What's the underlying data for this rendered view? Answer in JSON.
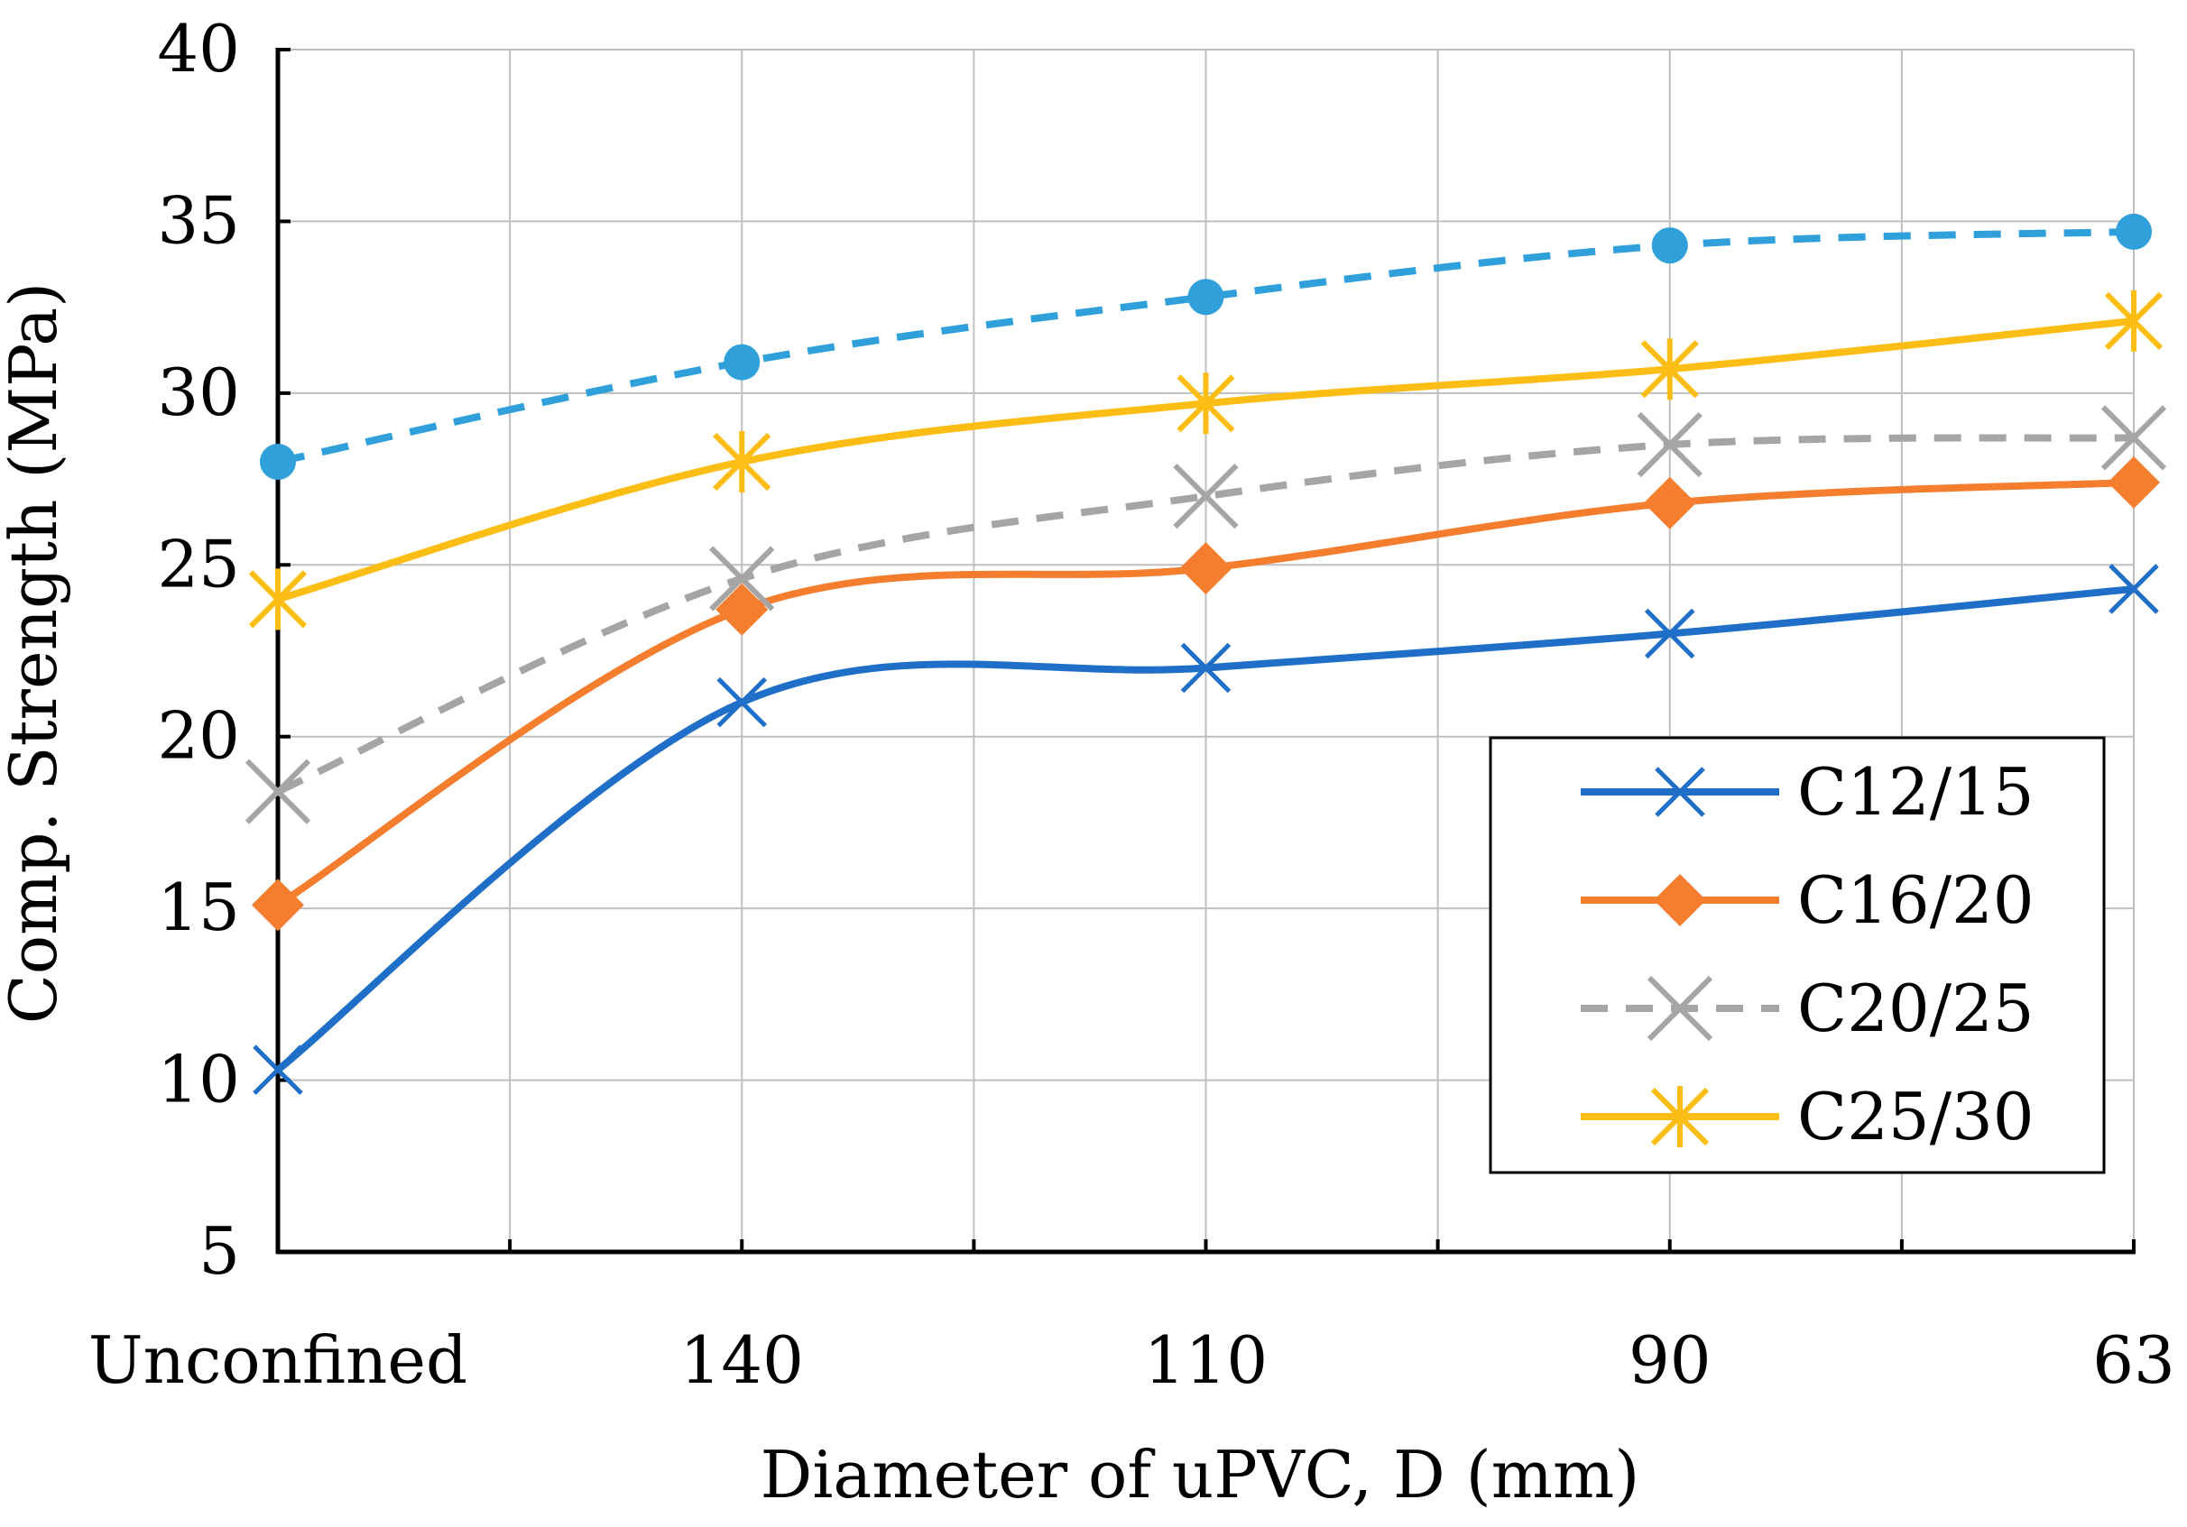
{
  "chart_data": {
    "type": "line",
    "title": "",
    "xlabel": "Diameter of uPVC, D (mm)",
    "ylabel": "Comp. Strength (MPa)",
    "categories": [
      "Unconfined",
      "140",
      "110",
      "90",
      "63"
    ],
    "ylim": [
      5,
      40
    ],
    "yticks": [
      5,
      10,
      15,
      20,
      25,
      30,
      35,
      40
    ],
    "grid": true,
    "legend_position": "bottom-right",
    "series": [
      {
        "name": "C12/15",
        "values": [
          10.3,
          21.0,
          22.0,
          23.0,
          24.3
        ],
        "color": "#1f6fc8",
        "marker": "x",
        "dashed": false,
        "in_legend": true
      },
      {
        "name": "C16/20",
        "values": [
          15.1,
          23.7,
          24.9,
          26.8,
          27.4
        ],
        "color": "#f47d2e",
        "marker": "diamond",
        "dashed": false,
        "in_legend": true
      },
      {
        "name": "C20/25",
        "values": [
          18.4,
          24.6,
          27.0,
          28.5,
          28.7
        ],
        "color": "#a5a5a5",
        "marker": "x-large",
        "dashed": true,
        "in_legend": true
      },
      {
        "name": "C25/30",
        "values": [
          24.0,
          28.0,
          29.7,
          30.7,
          32.1
        ],
        "color": "#fcbd14",
        "marker": "asterisk",
        "dashed": false,
        "in_legend": true
      },
      {
        "name": "",
        "values": [
          28.0,
          30.9,
          32.8,
          34.3,
          34.7
        ],
        "color": "#2fa0da",
        "marker": "circle",
        "dashed": true,
        "in_legend": false
      }
    ]
  }
}
